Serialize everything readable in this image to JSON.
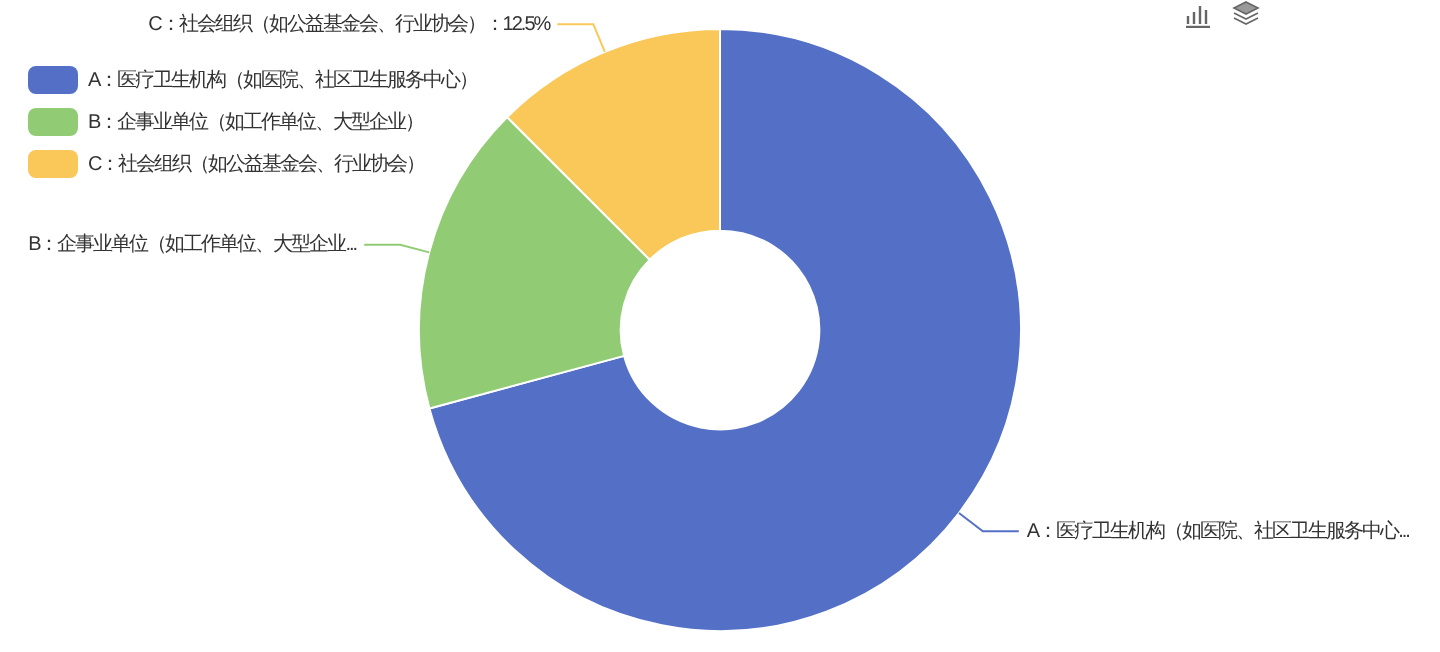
{
  "chart_data": {
    "type": "donut",
    "categories": [
      "A：医疗卫生机构（如医院、社区卫生服务中心）",
      "B：企事业单位（如工作单位、大型企业）",
      "C：社会组织（如公益基金会、行业协会）"
    ],
    "values": [
      70.8,
      16.7,
      12.5
    ],
    "colors": [
      "#5470c6",
      "#91cc75",
      "#fac858"
    ],
    "value_labels": [
      "A：医疗卫生机构（如医院、社区卫生服务中心...",
      "B：企事业单位（如工作单位、大型企业...",
      "C：社会组织（如公益基金会、行业协会）：12.5%"
    ],
    "legend": "top left"
  }
}
